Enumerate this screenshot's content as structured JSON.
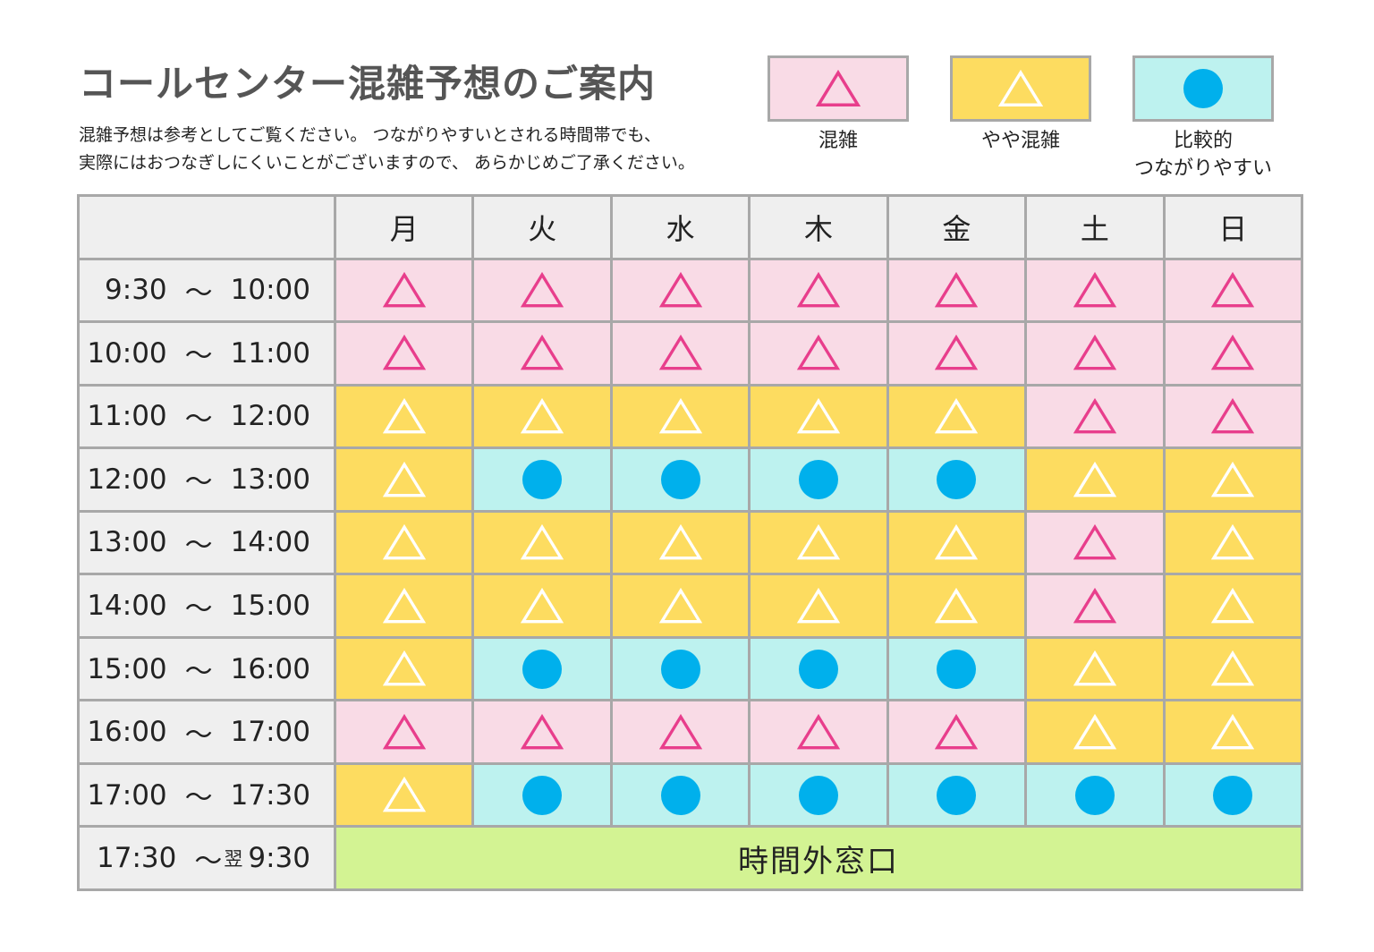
{
  "title": "コールセンター混雑予想のご案内",
  "description": [
    "混雑予想は参考としてご覧ください。 つながりやすいとされる時間帯でも、",
    "実際にはおつなぎしにくいことがございますので、 あらかじめご了承ください。"
  ],
  "legend": [
    {
      "key": "p",
      "label": "混雑",
      "icon": "triangle-icon"
    },
    {
      "key": "y",
      "label": "やや混雑",
      "icon": "triangle-icon"
    },
    {
      "key": "c",
      "label": "比較的\nつながりやすい",
      "icon": "circle-icon"
    }
  ],
  "colors": {
    "p_bg": "#f9dbe6",
    "p_icon": "#e83e8c",
    "y_bg": "#fddc60",
    "y_icon": "#ffffff",
    "c_bg": "#bdf2ef",
    "c_icon": "#00b0ec",
    "off_hours": "#d3f393"
  },
  "days": [
    "月",
    "火",
    "水",
    "木",
    "金",
    "土",
    "日"
  ],
  "rows": [
    {
      "time_start": "9:30",
      "sep": "〜",
      "time_end": "10:00",
      "levels": [
        "p",
        "p",
        "p",
        "p",
        "p",
        "p",
        "p"
      ]
    },
    {
      "time_start": "10:00",
      "sep": "〜",
      "time_end": "11:00",
      "levels": [
        "p",
        "p",
        "p",
        "p",
        "p",
        "p",
        "p"
      ]
    },
    {
      "time_start": "11:00",
      "sep": "〜",
      "time_end": "12:00",
      "levels": [
        "y",
        "y",
        "y",
        "y",
        "y",
        "p",
        "p"
      ]
    },
    {
      "time_start": "12:00",
      "sep": "〜",
      "time_end": "13:00",
      "levels": [
        "y",
        "c",
        "c",
        "c",
        "c",
        "y",
        "y"
      ]
    },
    {
      "time_start": "13:00",
      "sep": "〜",
      "time_end": "14:00",
      "levels": [
        "y",
        "y",
        "y",
        "y",
        "y",
        "p",
        "y"
      ]
    },
    {
      "time_start": "14:00",
      "sep": "〜",
      "time_end": "15:00",
      "levels": [
        "y",
        "y",
        "y",
        "y",
        "y",
        "p",
        "y"
      ]
    },
    {
      "time_start": "15:00",
      "sep": "〜",
      "time_end": "16:00",
      "levels": [
        "y",
        "c",
        "c",
        "c",
        "c",
        "y",
        "y"
      ]
    },
    {
      "time_start": "16:00",
      "sep": "〜",
      "time_end": "17:00",
      "levels": [
        "p",
        "p",
        "p",
        "p",
        "p",
        "y",
        "y"
      ]
    },
    {
      "time_start": "17:00",
      "sep": "〜",
      "time_end": "17:30",
      "levels": [
        "y",
        "c",
        "c",
        "c",
        "c",
        "c",
        "c"
      ]
    }
  ],
  "off_hours": {
    "time_start": "17:30",
    "sep": "〜",
    "next_day": "翌",
    "time_end": "9:30",
    "label": "時間外窓口"
  }
}
